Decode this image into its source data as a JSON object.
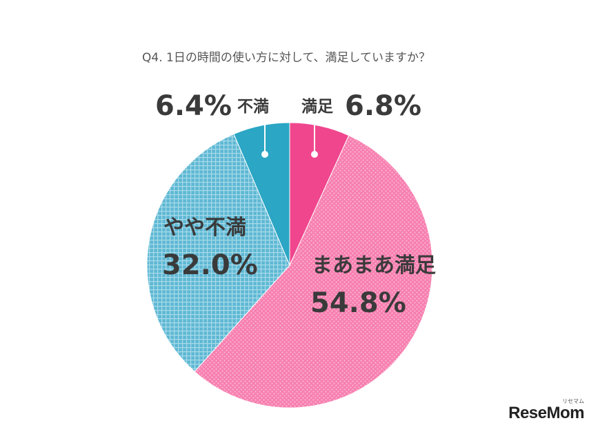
{
  "chart_data": {
    "type": "pie",
    "title": "Q4. 1日の時間の使い方に対して、満足していますか？",
    "slices": [
      {
        "label": "満足",
        "value": 6.8,
        "value_label": "6.8%",
        "color": "#f0468e"
      },
      {
        "label": "まあまあ満足",
        "value": 54.8,
        "value_label": "54.8%",
        "color": "#f77fb0"
      },
      {
        "label": "やや不満",
        "value": 32.0,
        "value_label": "32.0%",
        "color": "#5fb8d4"
      },
      {
        "label": "不満",
        "value": 6.4,
        "value_label": "6.4%",
        "color": "#2ba6c4"
      }
    ],
    "start": "12 o'clock",
    "direction": "clockwise"
  },
  "watermark": {
    "brand": "ReseMom",
    "brand_sub": "リセマム"
  }
}
